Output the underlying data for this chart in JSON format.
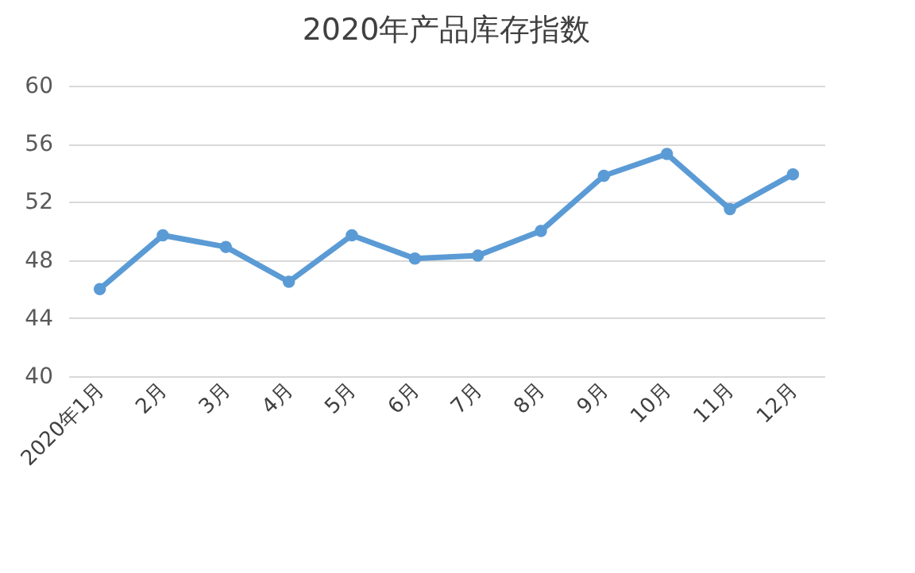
{
  "chart_data": {
    "type": "line",
    "title": "2020年产品库存指数",
    "categories": [
      "2020年1月",
      "2月",
      "3月",
      "4月",
      "5月",
      "6月",
      "7月",
      "8月",
      "9月",
      "10月",
      "11月",
      "12月"
    ],
    "series": [
      {
        "color": "#5b9bd5",
        "values": [
          46.0,
          49.7,
          48.9,
          46.5,
          49.7,
          48.1,
          48.3,
          50.0,
          53.8,
          55.3,
          51.5,
          53.9
        ]
      }
    ],
    "ylim": [
      40,
      60
    ],
    "yticks": [
      40,
      44,
      48,
      52,
      56,
      60
    ],
    "grid": "y",
    "marker": "circle",
    "line_style": "solid",
    "legend": false
  }
}
